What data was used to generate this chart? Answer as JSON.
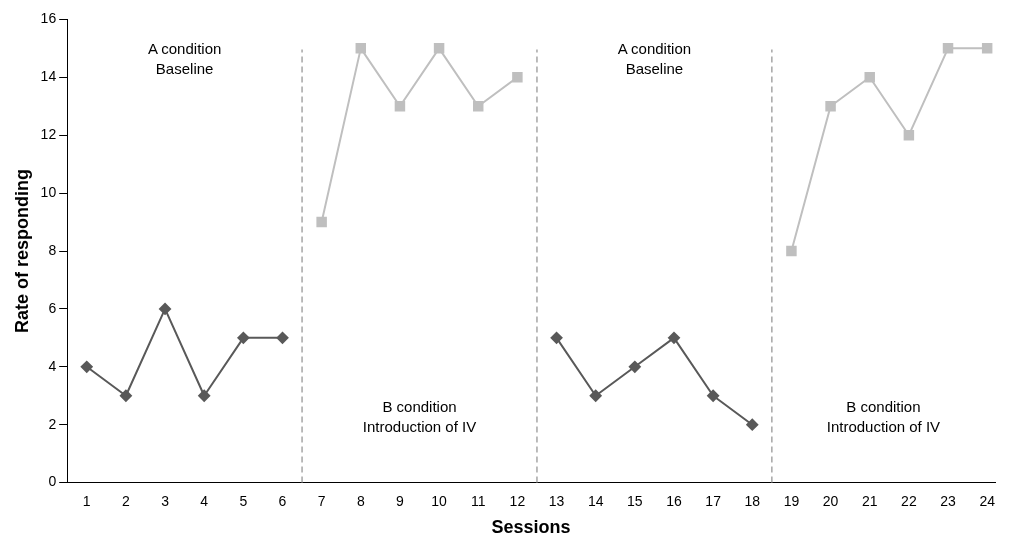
{
  "chart_data": {
    "type": "line",
    "xlabel": "Sessions",
    "ylabel": "Rate of responding",
    "x": [
      1,
      2,
      3,
      4,
      5,
      6,
      7,
      8,
      9,
      10,
      11,
      12,
      13,
      14,
      15,
      16,
      17,
      18,
      19,
      20,
      21,
      22,
      23,
      24
    ],
    "xlim": [
      0.5,
      24.2
    ],
    "xticks": [
      1,
      2,
      3,
      4,
      5,
      6,
      7,
      8,
      9,
      10,
      11,
      12,
      13,
      14,
      15,
      16,
      17,
      18,
      19,
      20,
      21,
      22,
      23,
      24
    ],
    "ylim": [
      0,
      16
    ],
    "yticks": [
      0,
      2,
      4,
      6,
      8,
      10,
      12,
      14,
      16
    ],
    "series": [
      {
        "color": "#595959",
        "marker": "diamond",
        "values": [
          4,
          3,
          6,
          3,
          5,
          5,
          null,
          null,
          null,
          null,
          null,
          null,
          null,
          null,
          null,
          null,
          null,
          null,
          null,
          null,
          null,
          null,
          null,
          null
        ]
      },
      {
        "color": "#bfbfbf",
        "marker": "square",
        "values": [
          null,
          null,
          null,
          null,
          null,
          null,
          9,
          15,
          13,
          15,
          13,
          14,
          null,
          null,
          null,
          null,
          null,
          null,
          null,
          null,
          null,
          null,
          null,
          null
        ]
      },
      {
        "color": "#595959",
        "marker": "diamond",
        "values": [
          null,
          null,
          null,
          null,
          null,
          null,
          null,
          null,
          null,
          null,
          null,
          null,
          5,
          3,
          4,
          5,
          3,
          2,
          null,
          null,
          null,
          null,
          null,
          null
        ]
      },
      {
        "color": "#bfbfbf",
        "marker": "square",
        "values": [
          null,
          null,
          null,
          null,
          null,
          null,
          null,
          null,
          null,
          null,
          null,
          null,
          null,
          null,
          null,
          null,
          null,
          null,
          8,
          13,
          14,
          12,
          15,
          15
        ]
      }
    ],
    "ref_lines": [
      {
        "axis": "x",
        "value": 6.5,
        "color": "#a6a6a6",
        "line_style": "dashed"
      },
      {
        "axis": "x",
        "value": 12.5,
        "color": "#a6a6a6",
        "line_style": "dashed"
      },
      {
        "axis": "x",
        "value": 18.5,
        "color": "#a6a6a6",
        "line_style": "dashed"
      }
    ],
    "annotations": [
      "A condition\nBaseline",
      "B condition\nIntroduction of IV",
      "A condition\nBaseline",
      "B condition\nIntroduction of IV"
    ],
    "grid": false,
    "legend": false
  }
}
